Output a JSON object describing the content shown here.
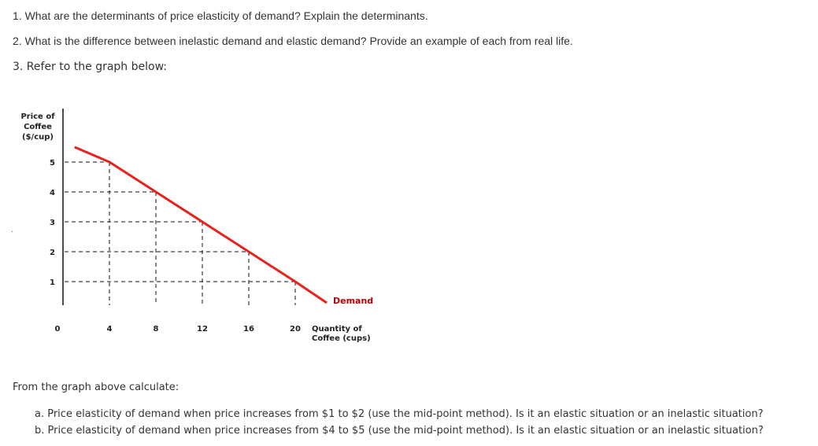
{
  "questions": {
    "q1": "1. What are the determinants of price elasticity of demand? Explain the determinants.",
    "q2": "2. What is the difference between inelastic demand and elastic demand? Provide an example of each from real life.",
    "q3": "3. Refer to the graph below:"
  },
  "stray_mark": ".",
  "chart_data": {
    "type": "line",
    "ylabel": [
      "Price of",
      "Coffee",
      "($/cup)"
    ],
    "xlabel": [
      "Quantity of",
      "Coffee (cups)"
    ],
    "x_ticks": [
      0,
      4,
      8,
      12,
      16,
      20
    ],
    "y_ticks": [
      1,
      2,
      3,
      4,
      5
    ],
    "xlim": [
      0,
      20
    ],
    "ylim": [
      0,
      6
    ],
    "series": [
      {
        "name": "Demand",
        "x": [
          1,
          4,
          8,
          12,
          16,
          20
        ],
        "y": [
          5.5,
          5,
          4,
          3,
          2,
          1
        ]
      }
    ],
    "guides": [
      {
        "q": 4,
        "p": 5
      },
      {
        "q": 8,
        "p": 4
      },
      {
        "q": 12,
        "p": 3
      },
      {
        "q": 16,
        "p": 2
      },
      {
        "q": 20,
        "p": 1
      }
    ],
    "line_color": "#e8211b"
  },
  "calculations": {
    "title": "From the graph above calculate:",
    "a": "a. Price elasticity of demand when price increases from $1 to $2 (use the mid-point method). Is it an elastic situation or an inelastic situation?",
    "b": "b. Price elasticity of demand when price increases from $4 to $5 (use the mid-point method). Is it an elastic situation or an inelastic situation?"
  }
}
